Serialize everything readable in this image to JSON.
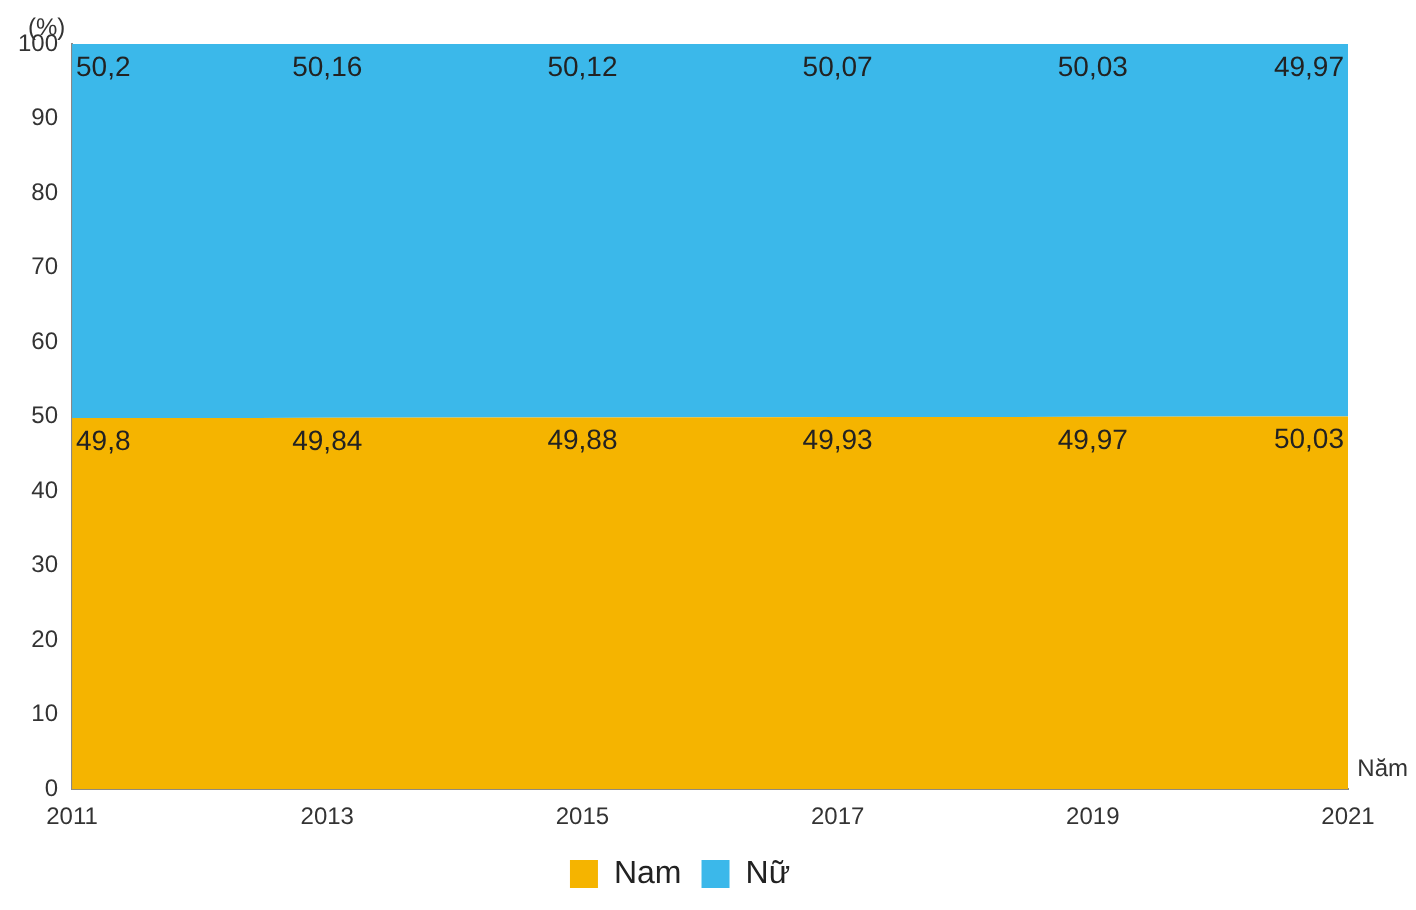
{
  "chart_data": {
    "type": "area",
    "stacked": true,
    "xlabel": "Năm",
    "ylabel": "(%)",
    "x": [
      2011,
      2013,
      2015,
      2017,
      2019,
      2021
    ],
    "xlim": [
      2011,
      2021
    ],
    "xticks": [
      2011,
      2013,
      2015,
      2017,
      2019,
      2021
    ],
    "ylim": [
      0,
      100
    ],
    "yticks": [
      0,
      10,
      20,
      30,
      40,
      50,
      60,
      70,
      80,
      90,
      100
    ],
    "grid": false,
    "legend": "bottom",
    "series": [
      {
        "name": "Nam",
        "color": "#f5b400",
        "values": [
          49.8,
          49.84,
          49.88,
          49.93,
          49.97,
          50.03
        ],
        "value_labels": [
          "49,8",
          "49,84",
          "49,88",
          "49,93",
          "49,97",
          "50,03"
        ]
      },
      {
        "name": "Nữ",
        "color": "#3bb8ea",
        "values": [
          50.2,
          50.16,
          50.12,
          50.07,
          50.03,
          49.97
        ],
        "value_labels": [
          "50,2",
          "50,16",
          "50,12",
          "50,07",
          "50,03",
          "49,97"
        ]
      }
    ]
  }
}
